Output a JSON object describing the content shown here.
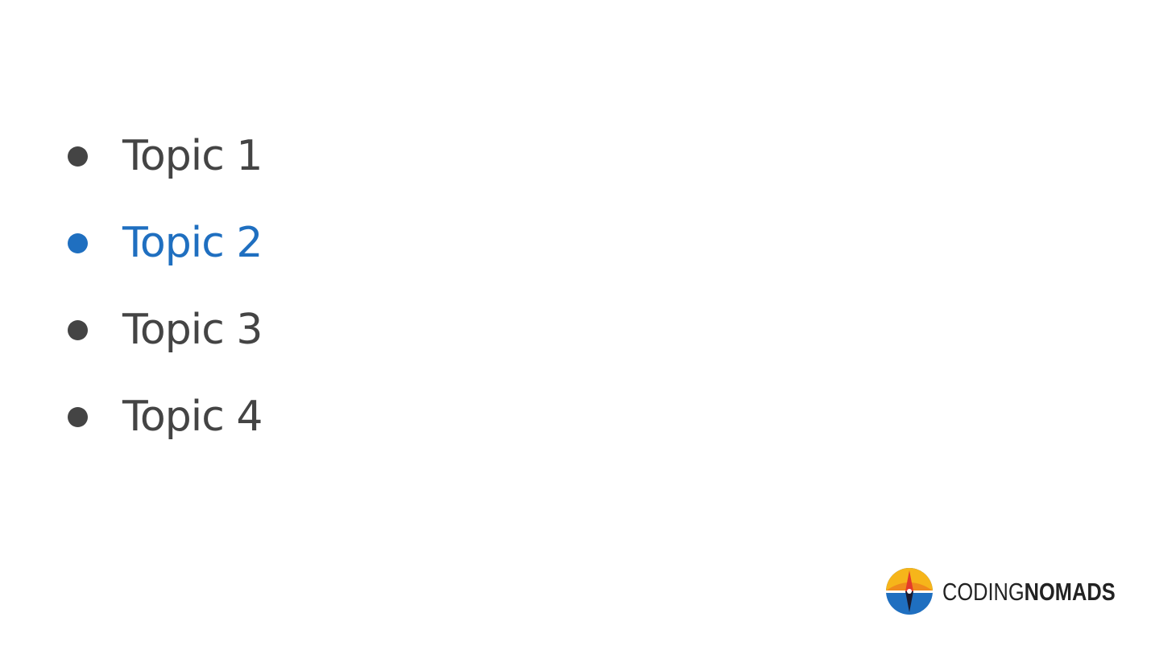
{
  "topics": [
    {
      "label": "Topic 1",
      "active": false
    },
    {
      "label": "Topic 2",
      "active": true
    },
    {
      "label": "Topic 3",
      "active": false
    },
    {
      "label": "Topic 4",
      "active": false
    }
  ],
  "colors": {
    "text": "#444444",
    "active": "#1f6fc0",
    "background": "#ffffff",
    "logo_blue": "#1f6fc0",
    "logo_yellow": "#f6b51a",
    "logo_orange": "#f08a1c",
    "logo_red": "#e43a2b"
  },
  "brand": {
    "name_light": "CODING",
    "name_bold": "NOMADS",
    "logo_icon": "compass-icon"
  }
}
